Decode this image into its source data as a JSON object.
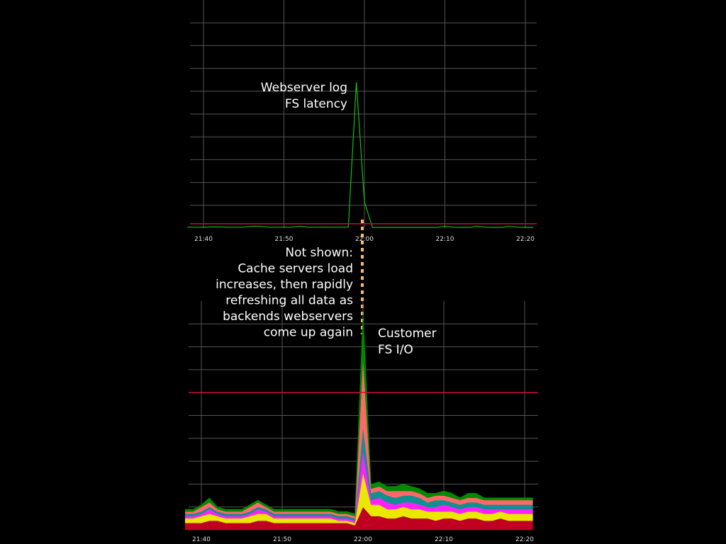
{
  "chart_data": [
    {
      "type": "line",
      "annotation": [
        "Webserver log",
        "FS latency"
      ],
      "x": [
        "21:38",
        "21:39",
        "21:40",
        "21:41",
        "21:42",
        "21:43",
        "21:44",
        "21:45",
        "21:46",
        "21:47",
        "21:48",
        "21:49",
        "21:50",
        "21:51",
        "21:52",
        "21:53",
        "21:54",
        "21:55",
        "21:56",
        "21:57",
        "21:58",
        "21:59",
        "22:00",
        "22:01",
        "22:02",
        "22:03",
        "22:04",
        "22:05",
        "22:06",
        "22:07",
        "22:08",
        "22:09",
        "22:10",
        "22:11",
        "22:12",
        "22:13",
        "22:14",
        "22:15",
        "22:16",
        "22:17",
        "22:18",
        "22:19",
        "22:20",
        "22:21"
      ],
      "xticks": [
        "21:40",
        "21:50",
        "22:00",
        "22:10",
        "22:20"
      ],
      "ylim": [
        0,
        100
      ],
      "threshold": 1.9,
      "threshold_color": "#c8103c",
      "grid": true,
      "series": [
        {
          "color": "#10c010",
          "values": [
            0.4,
            0.4,
            0.4,
            0.5,
            0.5,
            0.4,
            0.4,
            0.4,
            0.8,
            0.8,
            0.4,
            0.4,
            0.4,
            0.4,
            0.8,
            0.4,
            0.4,
            0.4,
            0.4,
            0.4,
            0.4,
            64,
            11.5,
            0.3,
            0.3,
            0.3,
            0.3,
            0.3,
            0.3,
            0.3,
            0.3,
            0.3,
            0.8,
            0.4,
            0.3,
            0.3,
            0.8,
            0.4,
            0.3,
            0.3,
            0.8,
            0.4,
            0.3,
            0.3
          ]
        }
      ]
    },
    {
      "type": "stacked_area",
      "annotation": [
        "Customer",
        "FS I/O"
      ],
      "x": [
        "21:38",
        "21:39",
        "21:40",
        "21:41",
        "21:42",
        "21:43",
        "21:44",
        "21:45",
        "21:46",
        "21:47",
        "21:48",
        "21:49",
        "21:50",
        "21:51",
        "21:52",
        "21:53",
        "21:54",
        "21:55",
        "21:56",
        "21:57",
        "21:58",
        "21:59",
        "22:00",
        "22:01",
        "22:02",
        "22:03",
        "22:04",
        "22:05",
        "22:06",
        "22:07",
        "22:08",
        "22:09",
        "22:10",
        "22:11",
        "22:12",
        "22:13",
        "22:14",
        "22:15",
        "22:16",
        "22:17",
        "22:18",
        "22:19",
        "22:20",
        "22:21"
      ],
      "xticks": [
        "21:40",
        "21:50",
        "22:00",
        "22:10",
        "22:20"
      ],
      "ylim": [
        0,
        100
      ],
      "threshold": 60,
      "threshold_color": "#c8103c",
      "grid": true,
      "series": [
        {
          "color": "#c00020",
          "values": [
            3,
            3,
            3,
            4,
            4,
            3,
            3,
            3,
            3,
            4,
            4,
            3,
            3,
            3,
            3,
            3,
            3,
            3,
            3,
            3,
            3,
            2,
            10,
            6,
            6,
            5,
            5,
            6,
            5,
            5,
            5,
            4,
            5,
            5,
            4,
            5,
            5,
            4,
            4,
            5,
            4,
            4,
            4,
            4
          ]
        },
        {
          "color": "#e8e800",
          "values": [
            2,
            2,
            3,
            3,
            2,
            2,
            2,
            2,
            3,
            3,
            3,
            2,
            2,
            2,
            2,
            2,
            2,
            2,
            2,
            1,
            1,
            1,
            15,
            5,
            5,
            4,
            4,
            4,
            4,
            4,
            3,
            4,
            3,
            3,
            3,
            3,
            3,
            3,
            3,
            3,
            3,
            3,
            3,
            3
          ]
        },
        {
          "color": "#ff20ff",
          "values": [
            1,
            1,
            1,
            2,
            1,
            1,
            1,
            1,
            1,
            2,
            1,
            1,
            1,
            1,
            1,
            1,
            1,
            1,
            1,
            1,
            1,
            1,
            10,
            2,
            3,
            3,
            2,
            2,
            3,
            2,
            2,
            2,
            3,
            2,
            2,
            2,
            2,
            2,
            2,
            1,
            2,
            2,
            2,
            2
          ]
        },
        {
          "color": "#109090",
          "values": [
            1,
            1,
            1,
            1,
            1,
            1,
            1,
            1,
            1,
            1,
            1,
            1,
            1,
            1,
            1,
            1,
            1,
            1,
            1,
            1,
            1,
            1,
            10,
            3,
            3,
            3,
            3,
            3,
            3,
            3,
            2,
            3,
            2,
            2,
            2,
            2,
            2,
            2,
            2,
            2,
            2,
            2,
            2,
            2
          ]
        },
        {
          "color": "#ff6868",
          "values": [
            1,
            1,
            2,
            2,
            1,
            1,
            1,
            1,
            2,
            2,
            1,
            1,
            1,
            1,
            1,
            1,
            1,
            1,
            1,
            1,
            1,
            1,
            30,
            2,
            2,
            2,
            3,
            2,
            2,
            2,
            2,
            2,
            2,
            2,
            2,
            2,
            2,
            2,
            2,
            2,
            2,
            2,
            2,
            2
          ]
        },
        {
          "color": "#008a00",
          "values": [
            1,
            1,
            1,
            2,
            1,
            1,
            1,
            1,
            1,
            1,
            1,
            1,
            1,
            1,
            1,
            1,
            1,
            1,
            1,
            1,
            1,
            1,
            20,
            2,
            2,
            2,
            2,
            3,
            2,
            2,
            2,
            1,
            2,
            2,
            1,
            2,
            2,
            1,
            1,
            1,
            1,
            1,
            1,
            1
          ]
        }
      ]
    }
  ],
  "note": [
    "Not shown:",
    "Cache servers load",
    "increases, then rapidly",
    "refreshing all data as",
    "backends webservers",
    "come up again"
  ]
}
